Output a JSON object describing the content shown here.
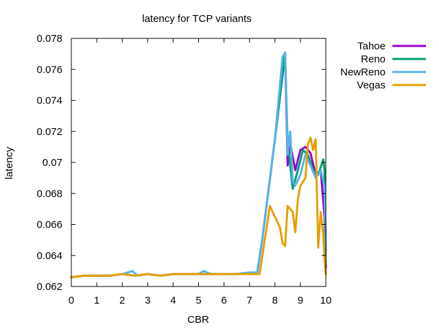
{
  "chart_data": {
    "type": "line",
    "title": "latency for TCP variants",
    "xlabel": "CBR",
    "ylabel": "latency",
    "xlim": [
      0,
      10
    ],
    "ylim": [
      0.062,
      0.078
    ],
    "x_ticks": [
      "0",
      "1",
      "2",
      "3",
      "4",
      "5",
      "6",
      "7",
      "8",
      "9",
      "10"
    ],
    "y_ticks": [
      "0.062",
      "0.064",
      "0.066",
      "0.068",
      "0.07",
      "0.072",
      "0.074",
      "0.076",
      "0.078"
    ],
    "grid": false,
    "legend_position": "top-right outside",
    "series": [
      {
        "name": "Tahoe",
        "color": "#9400d3",
        "x": [
          0,
          0.5,
          1,
          1.5,
          2,
          2.5,
          3,
          3.5,
          4,
          4.5,
          5,
          5.5,
          6,
          6.5,
          7,
          7.3,
          7.5,
          8,
          8.4,
          8.5,
          8.6,
          8.8,
          9,
          9.2,
          9.4,
          9.6,
          9.8,
          9.95,
          10
        ],
        "y": [
          0.0626,
          0.0627,
          0.0627,
          0.0627,
          0.0628,
          0.0627,
          0.0628,
          0.0627,
          0.0628,
          0.0628,
          0.0628,
          0.0628,
          0.0628,
          0.0628,
          0.0629,
          0.0628,
          0.065,
          0.0715,
          0.077,
          0.0698,
          0.0712,
          0.0695,
          0.0708,
          0.071,
          0.0706,
          0.0692,
          0.0695,
          0.0665,
          0.0632
        ]
      },
      {
        "name": "Reno",
        "color": "#009e73",
        "x": [
          0,
          0.5,
          1,
          1.5,
          2,
          2.5,
          3,
          3.5,
          4,
          4.5,
          5,
          5.5,
          6,
          6.5,
          7,
          7.3,
          7.5,
          8,
          8.4,
          8.5,
          8.7,
          8.9,
          9.1,
          9.3,
          9.5,
          9.7,
          9.9,
          9.95,
          10
        ],
        "y": [
          0.0626,
          0.0627,
          0.0627,
          0.0627,
          0.0628,
          0.0627,
          0.0628,
          0.0627,
          0.0628,
          0.0628,
          0.0628,
          0.0628,
          0.0628,
          0.0628,
          0.0629,
          0.0628,
          0.065,
          0.0715,
          0.077,
          0.0713,
          0.0683,
          0.0695,
          0.0708,
          0.0705,
          0.0695,
          0.0692,
          0.0702,
          0.0695,
          0.0642
        ]
      },
      {
        "name": "NewReno",
        "color": "#56b4e9",
        "x": [
          0,
          0.5,
          1,
          1.5,
          2,
          2.4,
          2.6,
          3,
          3.5,
          4,
          4.5,
          5,
          5.2,
          5.5,
          6,
          6.5,
          7,
          7.3,
          7.5,
          8,
          8.3,
          8.4,
          8.5,
          8.6,
          8.7,
          8.8,
          9,
          9.2,
          9.4,
          9.6,
          9.8,
          9.95,
          10
        ],
        "y": [
          0.0626,
          0.0627,
          0.0627,
          0.0627,
          0.0628,
          0.063,
          0.0627,
          0.0628,
          0.0627,
          0.0628,
          0.0628,
          0.0628,
          0.063,
          0.0628,
          0.0628,
          0.0628,
          0.0629,
          0.0629,
          0.065,
          0.0715,
          0.0768,
          0.0771,
          0.0705,
          0.072,
          0.0688,
          0.0685,
          0.0692,
          0.0705,
          0.0698,
          0.069,
          0.0695,
          0.0684,
          0.0635
        ]
      },
      {
        "name": "Vegas",
        "color": "#e69f00",
        "x": [
          0,
          0.5,
          1,
          1.5,
          2,
          2.5,
          3,
          3.5,
          4,
          4.5,
          5,
          5.5,
          6,
          6.5,
          7,
          7.4,
          7.8,
          8,
          8.2,
          8.3,
          8.4,
          8.5,
          8.7,
          8.8,
          8.9,
          9,
          9.2,
          9.3,
          9.4,
          9.5,
          9.6,
          9.7,
          9.8,
          9.9,
          9.95,
          10
        ],
        "y": [
          0.0626,
          0.0627,
          0.0627,
          0.0627,
          0.0628,
          0.0627,
          0.0628,
          0.0627,
          0.0628,
          0.0628,
          0.0628,
          0.0628,
          0.0628,
          0.0628,
          0.0628,
          0.0628,
          0.0672,
          0.0665,
          0.0658,
          0.0648,
          0.0646,
          0.0672,
          0.0668,
          0.0655,
          0.0676,
          0.0685,
          0.069,
          0.0712,
          0.0716,
          0.0708,
          0.0715,
          0.0645,
          0.0668,
          0.0653,
          0.0638,
          0.0628
        ]
      }
    ]
  }
}
